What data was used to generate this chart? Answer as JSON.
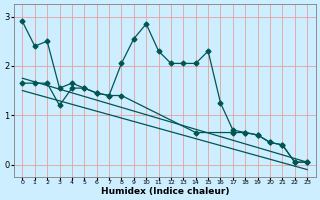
{
  "xlabel": "Humidex (Indice chaleur)",
  "bg_color": "#cceeff",
  "grid_color": "#e8a0a0",
  "line_color": "#005555",
  "ylim": [
    -0.25,
    3.25
  ],
  "xlim": [
    -0.7,
    23.7
  ],
  "yticks": [
    0,
    1,
    2,
    3
  ],
  "xticks": [
    0,
    1,
    2,
    3,
    4,
    5,
    6,
    7,
    8,
    9,
    10,
    11,
    12,
    13,
    14,
    15,
    16,
    17,
    18,
    19,
    20,
    21,
    22,
    23
  ],
  "line1_x": [
    0,
    1,
    2,
    3,
    4,
    5,
    6,
    7,
    8,
    9,
    10,
    11,
    12,
    13,
    14,
    15,
    16,
    17,
    18,
    19,
    20,
    21,
    22,
    23
  ],
  "line1_y": [
    2.9,
    2.4,
    2.5,
    1.55,
    1.65,
    1.55,
    1.45,
    1.4,
    2.05,
    2.55,
    2.85,
    2.3,
    2.05,
    2.05,
    2.05,
    2.3,
    1.25,
    0.7,
    0.65,
    0.6,
    0.45,
    0.4,
    0.05,
    0.05
  ],
  "line2_x": [
    0,
    1,
    2,
    3,
    4,
    5,
    6,
    7,
    8,
    14,
    17,
    18,
    19,
    20,
    21,
    22,
    23
  ],
  "line2_y": [
    1.65,
    1.65,
    1.65,
    1.2,
    1.55,
    1.55,
    1.45,
    1.4,
    1.4,
    0.65,
    0.65,
    0.65,
    0.6,
    0.45,
    0.4,
    0.05,
    0.05
  ],
  "line3_x": [
    0,
    23
  ],
  "line3_y": [
    1.75,
    0.05
  ],
  "line4_x": [
    0,
    23
  ],
  "line4_y": [
    1.5,
    -0.1
  ]
}
